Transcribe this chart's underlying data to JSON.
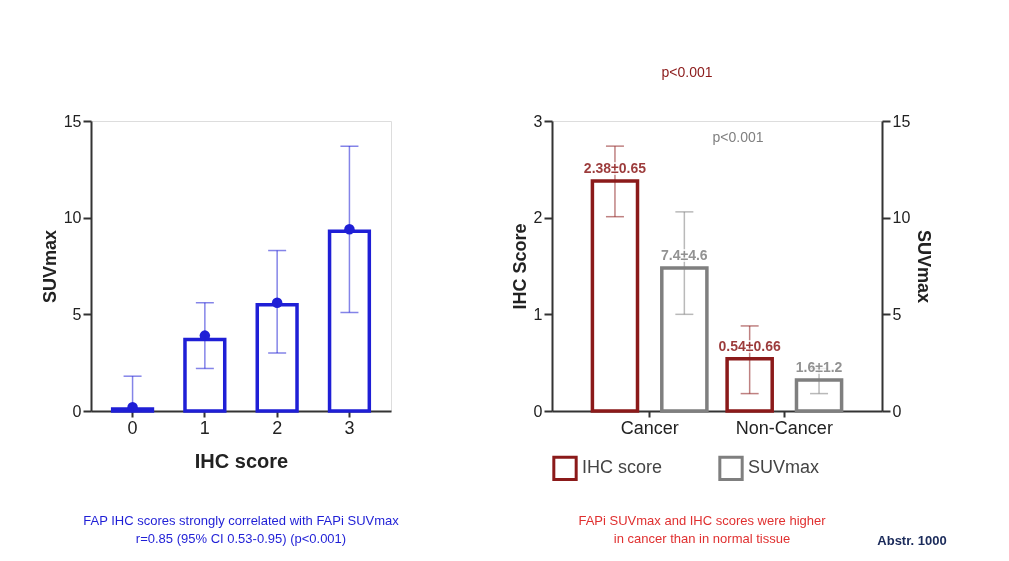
{
  "chart_data": [
    {
      "type": "bar",
      "categories": [
        "0",
        "1",
        "2",
        "3"
      ],
      "xlabel": "IHC score",
      "ylabel": "SUVmax",
      "ylim": [
        0,
        15
      ],
      "yticks": [
        0,
        5,
        10,
        15
      ],
      "grid": false,
      "legend": false,
      "marker": "circle",
      "series": [
        {
          "type": "bar",
          "color": "#1f1fd6",
          "values": [
            0.1,
            3.7,
            5.5,
            9.3
          ]
        },
        {
          "type": "scatter",
          "color": "#1f1fd6",
          "x": [
            "0",
            "1",
            "2",
            "3"
          ],
          "values": [
            0.2,
            3.9,
            5.6,
            9.4
          ],
          "errors": [
            [
              0,
              1.8
            ],
            [
              2.2,
              5.6
            ],
            [
              3.0,
              8.3
            ],
            [
              5.1,
              13.7
            ]
          ]
        }
      ],
      "annotations": [
        "FAP IHC scores strongly correlated with FAPi SUVmax",
        "r=0.85 (95% CI 0.53-0.95) (p<0.001)"
      ]
    },
    {
      "type": "bar",
      "categories": [
        "Cancer",
        "Non-Cancer"
      ],
      "ylabel": "IHC Score",
      "y2label": "SUVmax",
      "ylim": [
        0,
        3
      ],
      "yticks": [
        0,
        1,
        2,
        3
      ],
      "y2lim": [
        0,
        15
      ],
      "y2ticks": [
        0,
        5,
        10,
        15
      ],
      "grid": false,
      "legend": "bottom",
      "series": [
        {
          "name": "IHC score",
          "type": "bar",
          "color": "#8b1a1a",
          "values": [
            2.38,
            0.54
          ],
          "errors": [
            [
              2.01,
              2.74
            ],
            [
              0.18,
              0.88
            ]
          ],
          "value_labels": [
            "2.38±0.65",
            "0.54±0.66"
          ]
        },
        {
          "name": "SUVmax",
          "type": "bar",
          "axis": "y2",
          "color": "#7f7f7f",
          "values": [
            7.4,
            1.6
          ],
          "errors": [
            [
              5.0,
              10.3
            ],
            [
              0.9,
              2.2
            ]
          ],
          "value_labels": [
            "7.4±4.6",
            "1.6±1.2"
          ]
        }
      ],
      "annotations": [
        "p<0.001",
        "p<0.001",
        "FAPi SUVmax and IHC scores were higher",
        "in cancer than in normal tissue",
        "Abstr. 1000"
      ]
    }
  ]
}
